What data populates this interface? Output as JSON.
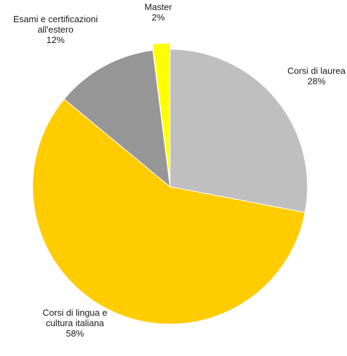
{
  "chart_data": {
    "type": "pie",
    "slices": [
      {
        "label": [
          "Corsi di laurea"
        ],
        "value_label": "28%",
        "value": 28,
        "color": "#bfbfbf"
      },
      {
        "label": [
          "Corsi di lingua e",
          "cultura italiana"
        ],
        "value_label": "58%",
        "value": 58,
        "color": "#ffcc00"
      },
      {
        "label": [
          "Esami e certificazioni",
          "all'estero"
        ],
        "value_label": "12%",
        "value": 12,
        "color": "#969696"
      },
      {
        "label": [
          "Master"
        ],
        "value_label": "2%",
        "value": 2,
        "color": "#ffff00"
      }
    ],
    "exploded": [
      "Master"
    ]
  }
}
